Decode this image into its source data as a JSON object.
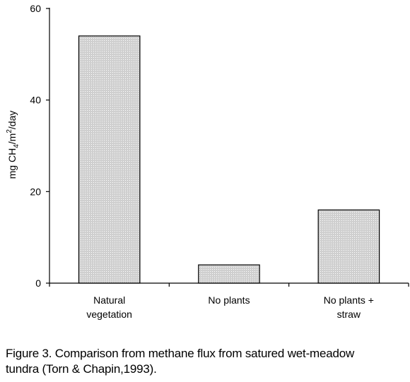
{
  "chart_data": {
    "type": "bar",
    "categories": [
      [
        "Natural",
        "vegetation"
      ],
      [
        "No plants"
      ],
      [
        "No plants +",
        "straw"
      ]
    ],
    "values": [
      54,
      4,
      16
    ],
    "ylim": [
      0,
      60
    ],
    "yticks": [
      0,
      20,
      40,
      60
    ],
    "ylabel": {
      "pre": "mg CH",
      "sub": "4",
      "mid": "/m",
      "sup": "2",
      "post": "/day"
    },
    "colors": {
      "bar_fill": "#cfcfcf",
      "bar_dots": "#ffffff",
      "bar_stroke": "#000000",
      "axis": "#000000"
    }
  },
  "caption": {
    "line1": "Figure 3. Comparison from methane flux from satured wet-meadow",
    "line2": "tundra (Torn & Chapin,1993)."
  }
}
